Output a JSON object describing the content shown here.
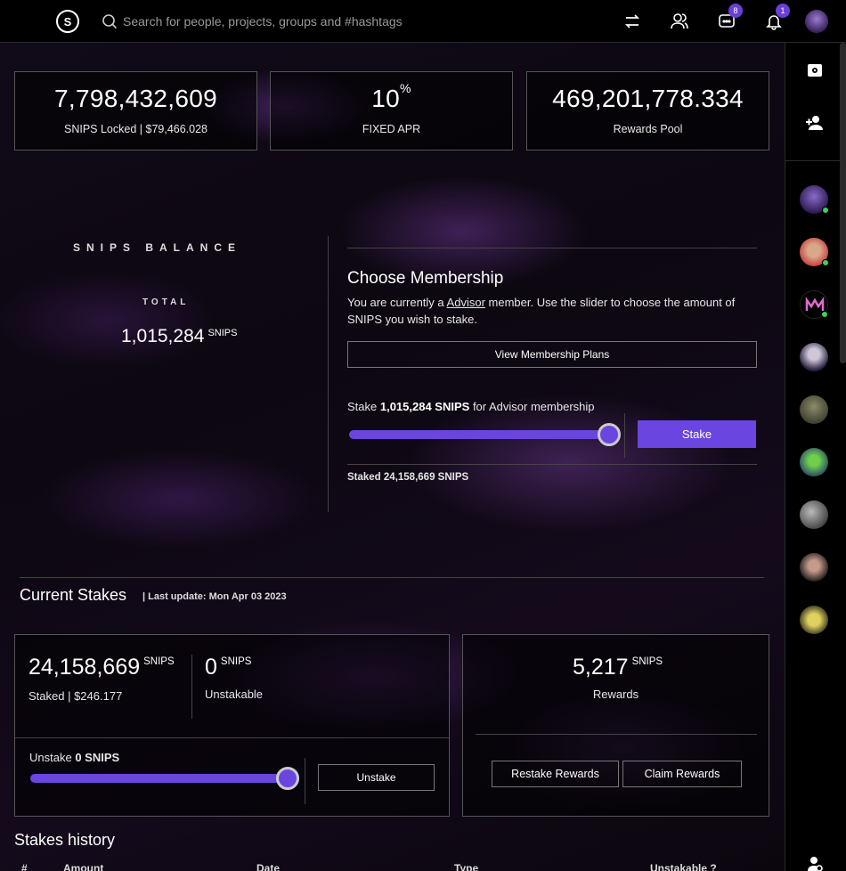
{
  "topbar": {
    "logo_letter": "S",
    "search_placeholder": "Search for people, projects, groups and #hashtags",
    "messages_badge": "8",
    "notifications_badge": "1"
  },
  "stats": [
    {
      "value": "7,798,432,609",
      "label": "SNIPS Locked | $79,466.028"
    },
    {
      "value": "10",
      "sup": "%",
      "label": "FIXED APR"
    },
    {
      "value": "469,201,778.334",
      "label": "Rewards Pool"
    }
  ],
  "balance": {
    "title": "SNIPS BALANCE",
    "total_label": "TOTAL",
    "total_value": "1,015,284",
    "unit": "SNIPS"
  },
  "membership": {
    "title": "Choose Membership",
    "desc_prefix": "You are currently a ",
    "desc_link": "Advisor",
    "desc_suffix": " member. Use the slider to choose the amount of SNIPS you wish to stake.",
    "view_plans_label": "View Membership Plans",
    "stake_prefix": "Stake ",
    "stake_amount": "1,015,284 SNIPS",
    "stake_suffix": " for Advisor membership",
    "stake_button": "Stake",
    "stake_slider_fraction": 1.0,
    "staked_total": "Staked 24,158,669 SNIPS"
  },
  "current_stakes": {
    "title": "Current Stakes",
    "last_update": "| Last update: Mon Apr 03 2023",
    "staked_value": "24,158,669",
    "staked_unit": "SNIPS",
    "staked_label": "Staked | $246.177",
    "unstakable_value": "0",
    "unstakable_unit": "SNIPS",
    "unstakable_label": "Unstakable",
    "unstake_prefix": "Unstake ",
    "unstake_amount": "0 SNIPS",
    "unstake_slider_fraction": 1.0,
    "unstake_button": "Unstake",
    "rewards_value": "5,217",
    "rewards_unit": "SNIPS",
    "rewards_label": "Rewards",
    "restake_button": "Restake Rewards",
    "claim_button": "Claim Rewards"
  },
  "history": {
    "title": "Stakes history",
    "columns": [
      "#",
      "Amount",
      "Date",
      "Type",
      "Unstakable ?"
    ]
  },
  "colors": {
    "accent": "#6b45e0",
    "online": "#3ecf5b"
  }
}
